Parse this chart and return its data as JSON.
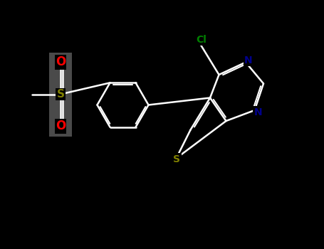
{
  "bg_color": "#000000",
  "bond_color": "#ffffff",
  "nitrogen_color": "#00008b",
  "sulfur_color": "#808000",
  "chlorine_color": "#008000",
  "oxygen_color": "#ff0000",
  "sulfonyl_s_color": "#808000",
  "line_width": 1.8,
  "font_size_atom": 10,
  "figsize": [
    4.55,
    3.5
  ],
  "dpi": 100,
  "xlim": [
    0,
    9.1
  ],
  "ylim": [
    0,
    7.0
  ]
}
